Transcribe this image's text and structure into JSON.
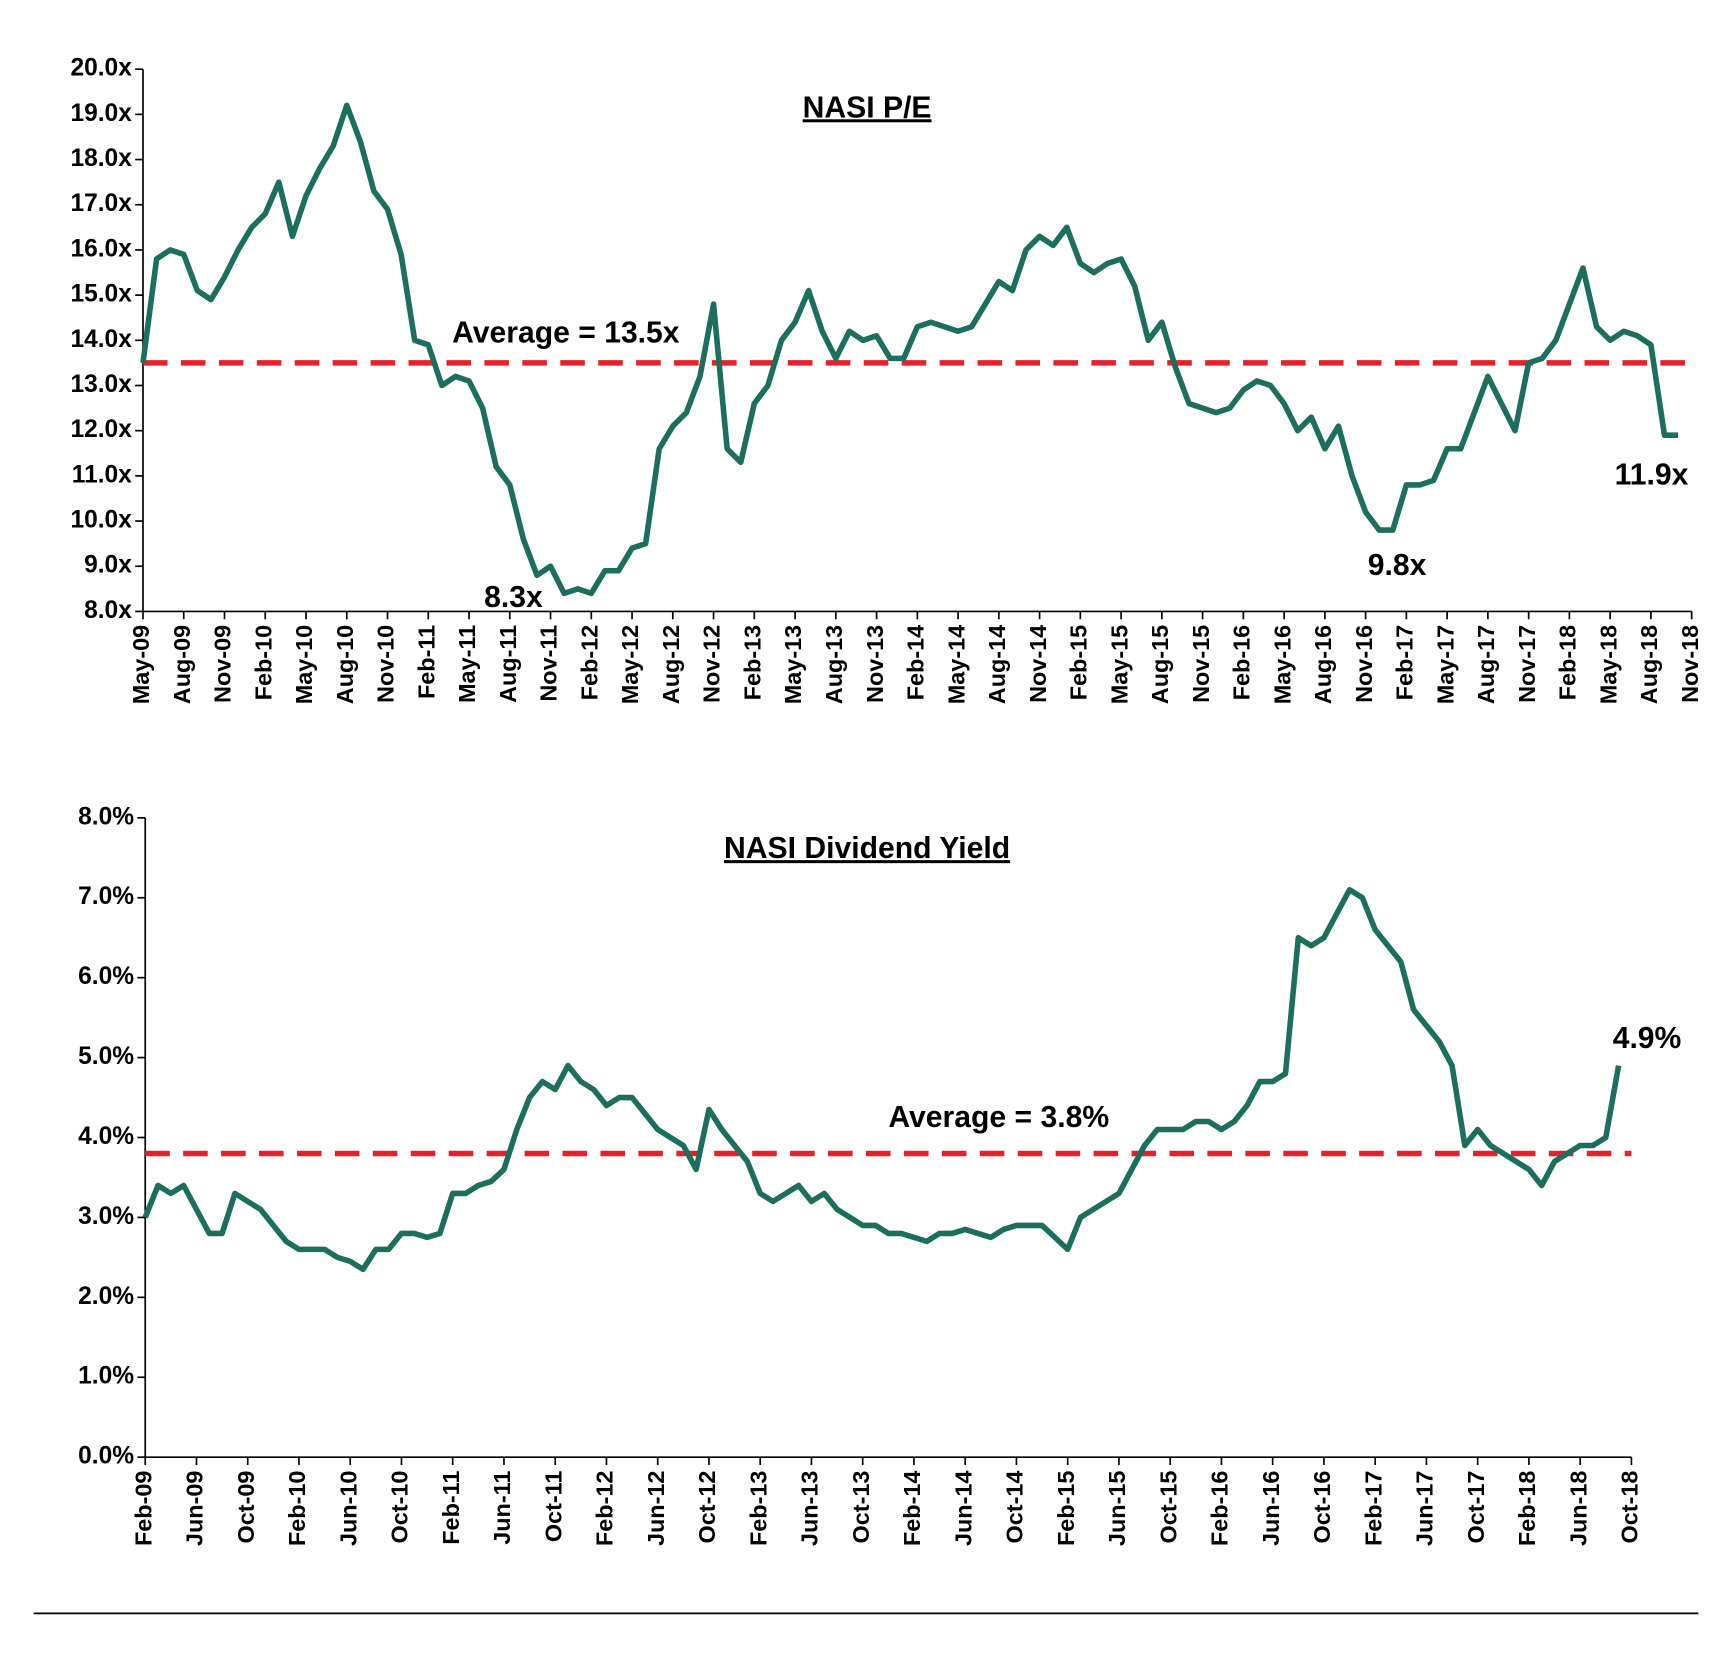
{
  "chart_data": [
    {
      "type": "line",
      "title": "NASI P/E",
      "categories": [
        "May-09",
        null,
        null,
        "Aug-09",
        null,
        null,
        "Nov-09",
        null,
        null,
        "Feb-10",
        null,
        null,
        "May-10",
        null,
        null,
        "Aug-10",
        null,
        null,
        "Nov-10",
        null,
        null,
        "Feb-11",
        null,
        null,
        "May-11",
        null,
        null,
        "Aug-11",
        null,
        null,
        "Nov-11",
        null,
        null,
        "Feb-12",
        null,
        null,
        "May-12",
        null,
        null,
        "Aug-12",
        null,
        null,
        "Nov-12",
        null,
        null,
        "Feb-13",
        null,
        null,
        "May-13",
        null,
        null,
        "Aug-13",
        null,
        null,
        "Nov-13",
        null,
        null,
        "Feb-14",
        null,
        null,
        "May-14",
        null,
        null,
        "Aug-14",
        null,
        null,
        "Nov-14",
        null,
        null,
        "Feb-15",
        null,
        null,
        "May-15",
        null,
        null,
        "Aug-15",
        null,
        null,
        "Nov-15",
        null,
        null,
        "Feb-16",
        null,
        null,
        "May-16",
        null,
        null,
        "Aug-16",
        null,
        null,
        "Nov-16",
        null,
        null,
        "Feb-17",
        null,
        null,
        "May-17",
        null,
        null,
        "Aug-17",
        null,
        null,
        "Nov-17",
        null,
        null,
        "Feb-18",
        null,
        null,
        "May-18",
        null,
        null,
        "Aug-18",
        null,
        null,
        "Nov-18"
      ],
      "series": [
        {
          "color": "#1b6f5c",
          "values": [
            13.5,
            15.8,
            16.0,
            15.9,
            15.1,
            14.9,
            15.4,
            16.0,
            16.5,
            16.8,
            17.5,
            16.3,
            17.2,
            17.8,
            18.3,
            19.2,
            18.4,
            17.3,
            16.9,
            15.9,
            14.0,
            13.9,
            13.0,
            13.2,
            13.1,
            12.5,
            11.2,
            10.8,
            9.6,
            8.8,
            9.0,
            8.4,
            8.5,
            8.4,
            8.9,
            8.9,
            9.4,
            9.5,
            11.6,
            12.1,
            12.4,
            13.2,
            14.8,
            11.6,
            11.3,
            12.6,
            13.0,
            14.0,
            14.4,
            15.1,
            14.2,
            13.6,
            14.2,
            14.0,
            14.1,
            13.6,
            13.6,
            14.3,
            14.4,
            14.3,
            14.2,
            14.3,
            14.8,
            15.3,
            15.1,
            16.0,
            16.3,
            16.1,
            16.5,
            15.7,
            15.5,
            15.7,
            15.8,
            15.2,
            14.0,
            14.4,
            13.4,
            12.6,
            12.5,
            12.4,
            12.5,
            12.9,
            13.1,
            13.0,
            12.6,
            12.0,
            12.3,
            11.6,
            12.1,
            11.0,
            10.2,
            9.8,
            9.8,
            10.8,
            10.8,
            10.9,
            11.6,
            11.6,
            12.4,
            13.2,
            12.6,
            12.0,
            13.5,
            13.6,
            14.0,
            14.8,
            15.6,
            14.3,
            14.0,
            14.2,
            14.1,
            13.9,
            11.9,
            11.9,
            null
          ]
        }
      ],
      "ylim": [
        8,
        20
      ],
      "yticks": [
        {
          "value": 8,
          "label": "8.0x"
        },
        {
          "value": 9,
          "label": "9.0x"
        },
        {
          "value": 10,
          "label": "10.0x"
        },
        {
          "value": 11,
          "label": "11.0x"
        },
        {
          "value": 12,
          "label": "12.0x"
        },
        {
          "value": 13,
          "label": "13.0x"
        },
        {
          "value": 14,
          "label": "14.0x"
        },
        {
          "value": 15,
          "label": "15.0x"
        },
        {
          "value": 16,
          "label": "16.0x"
        },
        {
          "value": 17,
          "label": "17.0x"
        },
        {
          "value": 18,
          "label": "18.0x"
        },
        {
          "value": 19,
          "label": "19.0x"
        },
        {
          "value": 20,
          "label": "20.0x"
        }
      ],
      "average": {
        "label": "Average = 13.5x",
        "value": 13.5,
        "color": "#e8202a"
      },
      "annotations": [
        {
          "text": "8.3x",
          "value": 8.3
        },
        {
          "text": "9.8x",
          "value": 9.8
        },
        {
          "text": "11.9x",
          "value": 11.9
        }
      ]
    },
    {
      "type": "line",
      "title": "NASI Dividend Yield",
      "categories": [
        "Feb-09",
        null,
        null,
        null,
        "Jun-09",
        null,
        null,
        null,
        "Oct-09",
        null,
        null,
        null,
        "Feb-10",
        null,
        null,
        null,
        "Jun-10",
        null,
        null,
        null,
        "Oct-10",
        null,
        null,
        null,
        "Feb-11",
        null,
        null,
        null,
        "Jun-11",
        null,
        null,
        null,
        "Oct-11",
        null,
        null,
        null,
        "Feb-12",
        null,
        null,
        null,
        "Jun-12",
        null,
        null,
        null,
        "Oct-12",
        null,
        null,
        null,
        "Feb-13",
        null,
        null,
        null,
        "Jun-13",
        null,
        null,
        null,
        "Oct-13",
        null,
        null,
        null,
        "Feb-14",
        null,
        null,
        null,
        "Jun-14",
        null,
        null,
        null,
        "Oct-14",
        null,
        null,
        null,
        "Feb-15",
        null,
        null,
        null,
        "Jun-15",
        null,
        null,
        null,
        "Oct-15",
        null,
        null,
        null,
        "Feb-16",
        null,
        null,
        null,
        "Jun-16",
        null,
        null,
        null,
        "Oct-16",
        null,
        null,
        null,
        "Feb-17",
        null,
        null,
        null,
        "Jun-17",
        null,
        null,
        null,
        "Oct-17",
        null,
        null,
        null,
        "Feb-18",
        null,
        null,
        null,
        "Jun-18",
        null,
        null,
        null,
        "Oct-18"
      ],
      "series": [
        {
          "color": "#1b6f5c",
          "values": [
            3.0,
            3.4,
            3.3,
            3.4,
            3.1,
            2.8,
            2.8,
            3.3,
            3.2,
            3.1,
            2.9,
            2.7,
            2.6,
            2.6,
            2.6,
            2.5,
            2.45,
            2.35,
            2.6,
            2.6,
            2.8,
            2.8,
            2.75,
            2.8,
            3.3,
            3.3,
            3.4,
            3.45,
            3.6,
            4.1,
            4.5,
            4.7,
            4.6,
            4.9,
            4.7,
            4.6,
            4.4,
            4.5,
            4.5,
            4.3,
            4.1,
            4.0,
            3.9,
            3.6,
            4.35,
            4.1,
            3.9,
            3.7,
            3.3,
            3.2,
            3.3,
            3.4,
            3.2,
            3.3,
            3.1,
            3.0,
            2.9,
            2.9,
            2.8,
            2.8,
            2.75,
            2.7,
            2.8,
            2.8,
            2.85,
            2.8,
            2.75,
            2.85,
            2.9,
            2.9,
            2.9,
            2.75,
            2.6,
            3.0,
            3.1,
            3.2,
            3.3,
            3.6,
            3.9,
            4.1,
            4.1,
            4.1,
            4.2,
            4.2,
            4.1,
            4.2,
            4.4,
            4.7,
            4.7,
            4.8,
            6.5,
            6.4,
            6.5,
            6.8,
            7.1,
            7.0,
            6.6,
            6.4,
            6.2,
            5.6,
            5.4,
            5.2,
            4.9,
            3.9,
            4.1,
            3.9,
            3.8,
            3.7,
            3.6,
            3.4,
            3.7,
            3.8,
            3.9,
            3.9,
            4.0,
            4.9,
            null
          ]
        }
      ],
      "ylim": [
        0,
        8
      ],
      "yticks": [
        {
          "value": 0,
          "label": "0.0%"
        },
        {
          "value": 1,
          "label": "1.0%"
        },
        {
          "value": 2,
          "label": "2.0%"
        },
        {
          "value": 3,
          "label": "3.0%"
        },
        {
          "value": 4,
          "label": "4.0%"
        },
        {
          "value": 5,
          "label": "5.0%"
        },
        {
          "value": 6,
          "label": "6.0%"
        },
        {
          "value": 7,
          "label": "7.0%"
        },
        {
          "value": 8,
          "label": "8.0%"
        }
      ],
      "average": {
        "label": "Average = 3.8%",
        "value": 3.8,
        "color": "#e8202a"
      },
      "annotations": [
        {
          "text": "4.9%",
          "value": 4.9
        }
      ]
    }
  ]
}
